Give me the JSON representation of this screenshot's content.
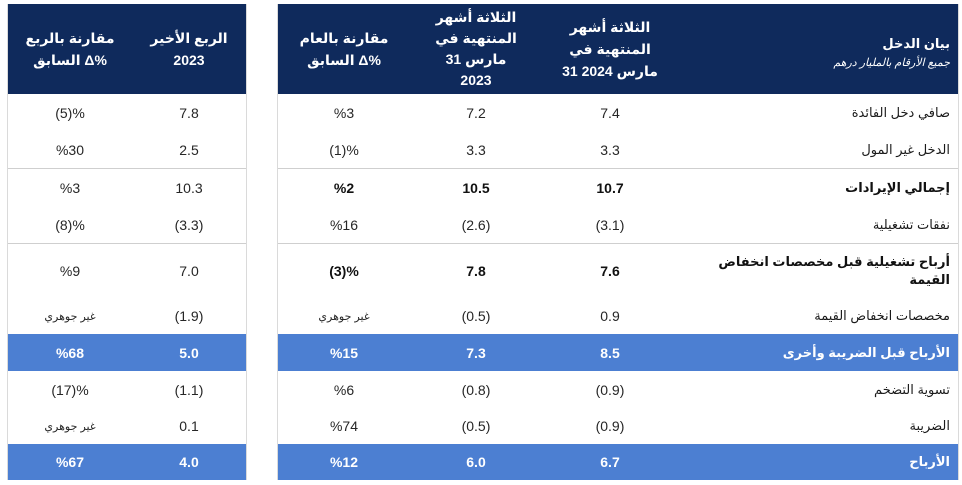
{
  "colors": {
    "header_bg": "#0f2a5c",
    "highlight_bg": "#4c7fd2",
    "header_text": "#ffffff",
    "body_text": "#262626",
    "rule": "#cfcfcf"
  },
  "income_table": {
    "header": {
      "title": "بيان الدخل",
      "subtitle": "جميع الأرقام بالمليار درهم",
      "q1_2024": {
        "line1": "الثلاثة أشهر",
        "line2": "المنتهية في",
        "line3": "31 مارس 2024"
      },
      "q1_2023": {
        "line1": "الثلاثة أشهر",
        "line2": "المنتهية في",
        "line3": "31 مارس",
        "line4": "2023"
      },
      "yoy": {
        "line1": "مقارنة بالعام",
        "line2": "السابق Δ%"
      }
    },
    "rows": [
      {
        "label": "صافي دخل الفائدة",
        "q1_2024": "7.4",
        "q1_2023": "7.2",
        "yoy": "%3"
      },
      {
        "label": "الدخل غير المول",
        "q1_2024": "3.3",
        "q1_2023": "3.3",
        "yoy": "(1)%"
      },
      {
        "label": "إجمالي الإيرادات",
        "q1_2024": "10.7",
        "q1_2023": "10.5",
        "yoy": "%2"
      },
      {
        "label": "نفقات تشغيلية",
        "q1_2024": "(3.1)",
        "q1_2023": "(2.6)",
        "yoy": "%16"
      },
      {
        "label_lines": [
          "أرباح تشغيلية قبل مخصصات انخفاض",
          "القيمة"
        ],
        "q1_2024": "7.6",
        "q1_2023": "7.8",
        "yoy": "(3)%"
      },
      {
        "label": "مخصصات انخفاض القيمة",
        "q1_2024": "0.9",
        "q1_2023": "(0.5)",
        "yoy": "غير جوهري"
      },
      {
        "label": "الأرباح قبل الضريبة وأخرى",
        "q1_2024": "8.5",
        "q1_2023": "7.3",
        "yoy": "%15"
      },
      {
        "label": "تسوية التضخم",
        "q1_2024": "(0.9)",
        "q1_2023": "(0.8)",
        "yoy": "%6"
      },
      {
        "label": "الضريبة",
        "q1_2024": "(0.9)",
        "q1_2023": "(0.5)",
        "yoy": "%74"
      },
      {
        "label": "الأرباح",
        "q1_2024": "6.7",
        "q1_2023": "6.0",
        "yoy": "%12"
      }
    ]
  },
  "quarter_table": {
    "header": {
      "q4_2023": {
        "line1": "الربع الأخير",
        "line2": "2023"
      },
      "qoq": {
        "line1": "مقارنة بالربع",
        "line2": "السابق Δ%"
      }
    },
    "rows": [
      {
        "q4_2023": "7.8",
        "qoq": "(5)%"
      },
      {
        "q4_2023": "2.5",
        "qoq": "%30"
      },
      {
        "q4_2023": "10.3",
        "qoq": "%3"
      },
      {
        "q4_2023": "(3.3)",
        "qoq": "(8)%"
      },
      {
        "q4_2023": "7.0",
        "qoq": "%9"
      },
      {
        "q4_2023": "(1.9)",
        "qoq": "غير جوهري"
      },
      {
        "q4_2023": "5.0",
        "qoq": "%68"
      },
      {
        "q4_2023": "(1.1)",
        "qoq": "(17)%"
      },
      {
        "q4_2023": "0.1",
        "qoq": "غير جوهري"
      },
      {
        "q4_2023": "4.0",
        "qoq": "%67"
      }
    ]
  }
}
